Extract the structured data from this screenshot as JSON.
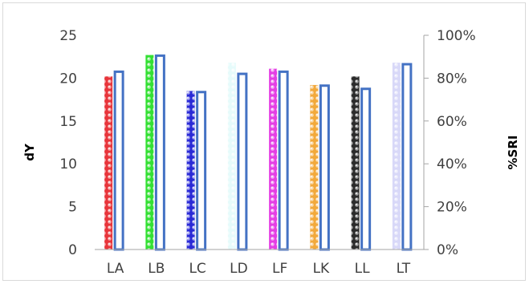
{
  "chart_data": {
    "type": "bar",
    "categories": [
      "LA",
      "LB",
      "LC",
      "LD",
      "LF",
      "LK",
      "LL",
      "LT"
    ],
    "series": [
      {
        "axis": "left",
        "values": [
          20.2,
          22.7,
          18.5,
          21.8,
          21.1,
          19.2,
          20.2,
          21.8
        ],
        "colors": [
          "#e8353b",
          "#33e033",
          "#2a2ad6",
          "#e6fbfb",
          "#e43ee4",
          "#f2a93b",
          "#2b2b2b",
          "#d8d8f8"
        ]
      },
      {
        "axis": "right",
        "values": [
          0.83,
          0.905,
          0.735,
          0.82,
          0.83,
          0.765,
          0.75,
          0.865
        ],
        "color": "#ffffff",
        "stroke": "#4472c4"
      }
    ],
    "y_left": {
      "label": "dY",
      "ylim": [
        0,
        25
      ],
      "ticks": [
        "0",
        "5",
        "10",
        "15",
        "20",
        "25"
      ]
    },
    "y_right": {
      "label": "%SRI",
      "ylim": [
        0,
        1
      ],
      "ticks": [
        "0%",
        "20%",
        "40%",
        "60%",
        "80%",
        "100%"
      ]
    },
    "grid": false,
    "legend": "none"
  }
}
